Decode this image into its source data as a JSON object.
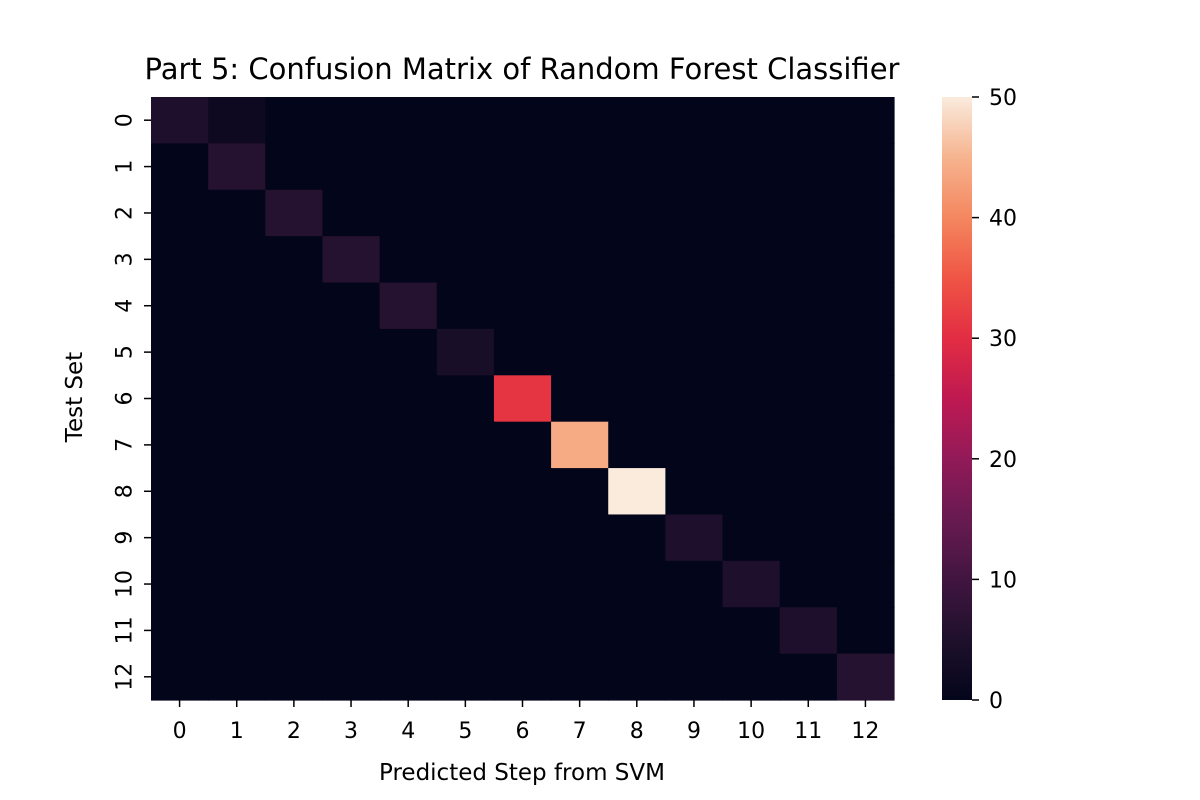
{
  "chart_data": {
    "type": "heatmap",
    "title": "Part 5: Confusion Matrix of Random Forest Classifier",
    "xlabel": "Predicted Step from SVM",
    "ylabel": "Test Set",
    "x_categories": [
      "0",
      "1",
      "2",
      "3",
      "4",
      "5",
      "6",
      "7",
      "8",
      "9",
      "10",
      "11",
      "12"
    ],
    "y_categories": [
      "0",
      "1",
      "2",
      "3",
      "4",
      "5",
      "6",
      "7",
      "8",
      "9",
      "10",
      "11",
      "12"
    ],
    "values": [
      [
        5,
        2,
        0,
        0,
        0,
        0,
        0,
        0,
        0,
        0,
        0,
        0,
        0
      ],
      [
        0,
        6,
        0,
        0,
        0,
        0,
        0,
        0,
        0,
        0,
        0,
        0,
        0
      ],
      [
        0,
        0,
        6,
        0,
        0,
        0,
        0,
        0,
        0,
        0,
        0,
        0,
        0
      ],
      [
        0,
        0,
        0,
        6,
        0,
        0,
        0,
        0,
        0,
        0,
        0,
        0,
        0
      ],
      [
        0,
        0,
        0,
        0,
        6,
        0,
        0,
        0,
        0,
        0,
        0,
        0,
        0
      ],
      [
        0,
        0,
        0,
        0,
        0,
        4,
        0,
        0,
        0,
        0,
        0,
        0,
        0
      ],
      [
        0,
        0,
        0,
        0,
        0,
        0,
        31,
        0,
        0,
        0,
        0,
        0,
        0
      ],
      [
        0,
        0,
        0,
        0,
        0,
        0,
        0,
        44,
        0,
        0,
        0,
        0,
        0
      ],
      [
        0,
        0,
        0,
        0,
        0,
        0,
        0,
        0,
        50,
        0,
        0,
        0,
        0
      ],
      [
        0,
        0,
        0,
        0,
        0,
        0,
        0,
        0,
        0,
        5,
        0,
        0,
        0
      ],
      [
        0,
        0,
        0,
        0,
        0,
        0,
        0,
        0,
        0,
        0,
        5,
        0,
        0
      ],
      [
        0,
        0,
        0,
        0,
        0,
        0,
        0,
        0,
        0,
        0,
        0,
        5,
        0
      ],
      [
        0,
        0,
        0,
        0,
        0,
        0,
        0,
        0,
        0,
        0,
        0,
        0,
        6
      ]
    ],
    "colorbar": {
      "min": 0,
      "max": 50,
      "ticks": [
        "0",
        "10",
        "20",
        "30",
        "40",
        "50"
      ],
      "colormap": "rocket"
    }
  }
}
